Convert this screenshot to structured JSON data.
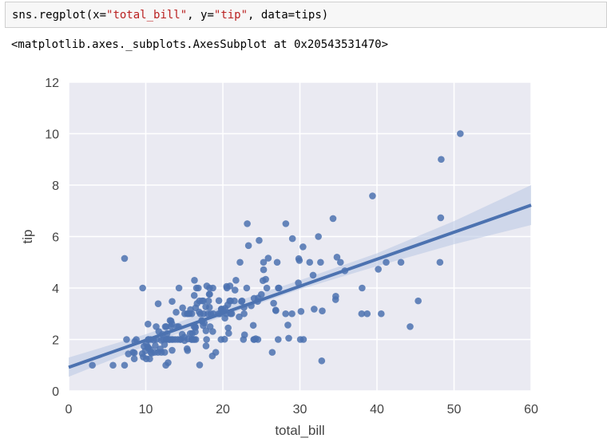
{
  "code_cell": {
    "fn": "sns.regplot(",
    "x_key": "x=",
    "x_val": "\"total_bill\"",
    "sep1": ", ",
    "y_key": "y=",
    "y_val": "\"tip\"",
    "sep2": ", ",
    "data_part": "data=tips)"
  },
  "output": {
    "repr": "<matplotlib.axes._subplots.AxesSubplot at 0x20543531470>"
  },
  "chart_data": {
    "type": "scatter",
    "xlabel": "total_bill",
    "ylabel": "tip",
    "xlim": [
      0,
      60
    ],
    "ylim": [
      0,
      12
    ],
    "xticks": [
      0,
      10,
      20,
      30,
      40,
      50,
      60
    ],
    "yticks": [
      0,
      2,
      4,
      6,
      8,
      10,
      12
    ],
    "grid": true,
    "colors": {
      "background": "#eaeaf2",
      "grid": "#ffffff",
      "points": "#4c72b0",
      "ci": "#b8c6e3"
    },
    "regression": {
      "x": [
        0,
        60
      ],
      "y": [
        0.92,
        7.22
      ]
    },
    "ci_band": {
      "x": [
        0,
        10,
        20,
        30,
        40,
        50,
        60
      ],
      "lower": [
        0.55,
        1.75,
        2.9,
        3.95,
        4.85,
        5.7,
        6.45
      ],
      "upper": [
        1.3,
        2.2,
        3.3,
        4.3,
        5.35,
        6.6,
        8.0
      ]
    },
    "points": [
      [
        3.07,
        1.0
      ],
      [
        5.75,
        1.0
      ],
      [
        7.25,
        1.0
      ],
      [
        7.25,
        5.15
      ],
      [
        7.51,
        2.0
      ],
      [
        7.74,
        1.44
      ],
      [
        8.35,
        1.5
      ],
      [
        8.51,
        1.25
      ],
      [
        8.52,
        1.48
      ],
      [
        8.58,
        1.92
      ],
      [
        8.77,
        2.0
      ],
      [
        9.55,
        1.45
      ],
      [
        9.6,
        4.0
      ],
      [
        9.68,
        1.32
      ],
      [
        9.78,
        1.73
      ],
      [
        9.94,
        1.56
      ],
      [
        10.07,
        1.83
      ],
      [
        10.07,
        1.25
      ],
      [
        10.27,
        1.71
      ],
      [
        10.29,
        2.6
      ],
      [
        10.33,
        1.67
      ],
      [
        10.33,
        2.0
      ],
      [
        10.34,
        1.66
      ],
      [
        10.34,
        2.0
      ],
      [
        10.51,
        1.25
      ],
      [
        10.59,
        1.61
      ],
      [
        10.63,
        2.0
      ],
      [
        10.65,
        1.5
      ],
      [
        10.77,
        1.47
      ],
      [
        11.02,
        1.98
      ],
      [
        11.17,
        1.5
      ],
      [
        11.24,
        1.76
      ],
      [
        11.35,
        2.5
      ],
      [
        11.38,
        2.0
      ],
      [
        11.59,
        1.5
      ],
      [
        11.61,
        3.39
      ],
      [
        11.69,
        2.31
      ],
      [
        11.87,
        1.63
      ],
      [
        12.02,
        1.97
      ],
      [
        12.03,
        1.5
      ],
      [
        12.16,
        2.2
      ],
      [
        12.26,
        2.0
      ],
      [
        12.43,
        1.8
      ],
      [
        12.46,
        1.5
      ],
      [
        12.54,
        2.5
      ],
      [
        12.6,
        1.0
      ],
      [
        12.66,
        2.5
      ],
      [
        12.69,
        2.0
      ],
      [
        12.74,
        2.01
      ],
      [
        12.76,
        2.23
      ],
      [
        12.9,
        1.1
      ],
      [
        13.0,
        2.0
      ],
      [
        13.03,
        2.0
      ],
      [
        13.13,
        2.0
      ],
      [
        13.16,
        2.74
      ],
      [
        13.27,
        2.5
      ],
      [
        13.28,
        2.72
      ],
      [
        13.37,
        2.0
      ],
      [
        13.39,
        2.61
      ],
      [
        13.42,
        3.48
      ],
      [
        13.42,
        1.58
      ],
      [
        13.51,
        2.0
      ],
      [
        13.81,
        2.0
      ],
      [
        13.94,
        3.06
      ],
      [
        14.07,
        2.5
      ],
      [
        14.15,
        2.0
      ],
      [
        14.26,
        2.5
      ],
      [
        14.31,
        4.0
      ],
      [
        14.48,
        2.0
      ],
      [
        14.52,
        2.0
      ],
      [
        14.73,
        2.2
      ],
      [
        14.78,
        3.23
      ],
      [
        15.01,
        2.09
      ],
      [
        15.04,
        1.96
      ],
      [
        15.06,
        3.0
      ],
      [
        15.36,
        1.64
      ],
      [
        15.38,
        3.0
      ],
      [
        15.42,
        1.57
      ],
      [
        15.48,
        2.02
      ],
      [
        15.53,
        3.0
      ],
      [
        15.69,
        3.0
      ],
      [
        15.77,
        2.23
      ],
      [
        15.81,
        3.16
      ],
      [
        15.95,
        2.0
      ],
      [
        15.98,
        3.0
      ],
      [
        16.0,
        2.0
      ],
      [
        16.04,
        2.24
      ],
      [
        16.21,
        2.0
      ],
      [
        16.27,
        2.5
      ],
      [
        16.29,
        3.71
      ],
      [
        16.31,
        2.0
      ],
      [
        16.32,
        4.3
      ],
      [
        16.4,
        2.5
      ],
      [
        16.43,
        2.3
      ],
      [
        16.45,
        2.47
      ],
      [
        16.47,
        3.23
      ],
      [
        16.49,
        2.0
      ],
      [
        16.58,
        4.0
      ],
      [
        16.66,
        3.4
      ],
      [
        16.82,
        4.0
      ],
      [
        16.93,
        3.07
      ],
      [
        16.97,
        3.5
      ],
      [
        16.99,
        1.01
      ],
      [
        17.07,
        3.0
      ],
      [
        17.26,
        2.74
      ],
      [
        17.29,
        2.71
      ],
      [
        17.31,
        3.5
      ],
      [
        17.46,
        2.54
      ],
      [
        17.47,
        3.5
      ],
      [
        17.51,
        3.0
      ],
      [
        17.59,
        2.64
      ],
      [
        17.78,
        3.27
      ],
      [
        17.81,
        2.34
      ],
      [
        17.82,
        1.75
      ],
      [
        17.89,
        2.0
      ],
      [
        17.92,
        4.08
      ],
      [
        18.04,
        3.0
      ],
      [
        18.15,
        3.5
      ],
      [
        18.24,
        3.76
      ],
      [
        18.26,
        3.25
      ],
      [
        18.28,
        4.0
      ],
      [
        18.29,
        3.76
      ],
      [
        18.35,
        2.5
      ],
      [
        18.43,
        3.0
      ],
      [
        18.64,
        1.36
      ],
      [
        18.69,
        2.31
      ],
      [
        18.71,
        4.0
      ],
      [
        18.78,
        3.0
      ],
      [
        19.08,
        1.5
      ],
      [
        19.44,
        3.0
      ],
      [
        19.49,
        3.51
      ],
      [
        19.65,
        3.0
      ],
      [
        19.77,
        2.0
      ],
      [
        19.81,
        3.18
      ],
      [
        19.82,
        3.18
      ],
      [
        20.08,
        3.15
      ],
      [
        20.23,
        2.01
      ],
      [
        20.27,
        2.83
      ],
      [
        20.29,
        3.21
      ],
      [
        20.45,
        3.0
      ],
      [
        20.49,
        4.06
      ],
      [
        20.53,
        4.0
      ],
      [
        20.65,
        3.35
      ],
      [
        20.69,
        2.45
      ],
      [
        20.76,
        2.24
      ],
      [
        20.9,
        3.5
      ],
      [
        20.92,
        4.08
      ],
      [
        21.01,
        3.5
      ],
      [
        21.01,
        3.0
      ],
      [
        21.16,
        3.0
      ],
      [
        21.5,
        3.5
      ],
      [
        21.58,
        3.92
      ],
      [
        21.7,
        4.3
      ],
      [
        22.12,
        2.88
      ],
      [
        22.23,
        5.0
      ],
      [
        22.42,
        3.48
      ],
      [
        22.49,
        3.5
      ],
      [
        22.67,
        2.0
      ],
      [
        22.75,
        3.25
      ],
      [
        22.76,
        3.0
      ],
      [
        22.82,
        2.18
      ],
      [
        23.1,
        4.0
      ],
      [
        23.17,
        6.5
      ],
      [
        23.33,
        5.65
      ],
      [
        23.68,
        3.31
      ],
      [
        23.95,
        2.55
      ],
      [
        24.01,
        2.0
      ],
      [
        24.06,
        3.6
      ],
      [
        24.08,
        2.0
      ],
      [
        24.27,
        2.03
      ],
      [
        24.52,
        3.48
      ],
      [
        24.55,
        2.0
      ],
      [
        24.59,
        3.61
      ],
      [
        24.71,
        5.85
      ],
      [
        25.0,
        3.75
      ],
      [
        25.21,
        4.29
      ],
      [
        25.28,
        5.0
      ],
      [
        25.29,
        4.71
      ],
      [
        25.56,
        4.34
      ],
      [
        25.71,
        4.0
      ],
      [
        25.89,
        5.16
      ],
      [
        26.41,
        1.5
      ],
      [
        26.59,
        3.41
      ],
      [
        26.86,
        3.14
      ],
      [
        26.88,
        3.12
      ],
      [
        27.05,
        5.0
      ],
      [
        27.18,
        2.0
      ],
      [
        27.2,
        4.0
      ],
      [
        27.28,
        4.0
      ],
      [
        28.15,
        3.0
      ],
      [
        28.17,
        6.5
      ],
      [
        28.44,
        2.56
      ],
      [
        28.55,
        2.05
      ],
      [
        28.97,
        3.0
      ],
      [
        29.03,
        5.92
      ],
      [
        29.8,
        4.2
      ],
      [
        29.85,
        5.14
      ],
      [
        29.93,
        5.07
      ],
      [
        30.06,
        2.0
      ],
      [
        30.14,
        3.09
      ],
      [
        30.4,
        5.6
      ],
      [
        30.46,
        2.0
      ],
      [
        31.27,
        5.0
      ],
      [
        31.71,
        4.5
      ],
      [
        31.85,
        3.18
      ],
      [
        32.4,
        6.0
      ],
      [
        32.68,
        5.0
      ],
      [
        32.83,
        1.17
      ],
      [
        32.9,
        3.11
      ],
      [
        34.3,
        6.7
      ],
      [
        34.63,
        3.55
      ],
      [
        34.65,
        3.68
      ],
      [
        34.81,
        5.2
      ],
      [
        35.26,
        5.0
      ],
      [
        35.83,
        4.67
      ],
      [
        38.01,
        3.0
      ],
      [
        38.07,
        4.0
      ],
      [
        38.73,
        3.0
      ],
      [
        39.42,
        7.58
      ],
      [
        40.17,
        4.73
      ],
      [
        40.55,
        3.0
      ],
      [
        41.19,
        5.0
      ],
      [
        43.11,
        5.0
      ],
      [
        44.3,
        2.5
      ],
      [
        45.35,
        3.5
      ],
      [
        48.17,
        5.0
      ],
      [
        48.27,
        6.73
      ],
      [
        48.33,
        9.0
      ],
      [
        50.81,
        10.0
      ]
    ]
  }
}
